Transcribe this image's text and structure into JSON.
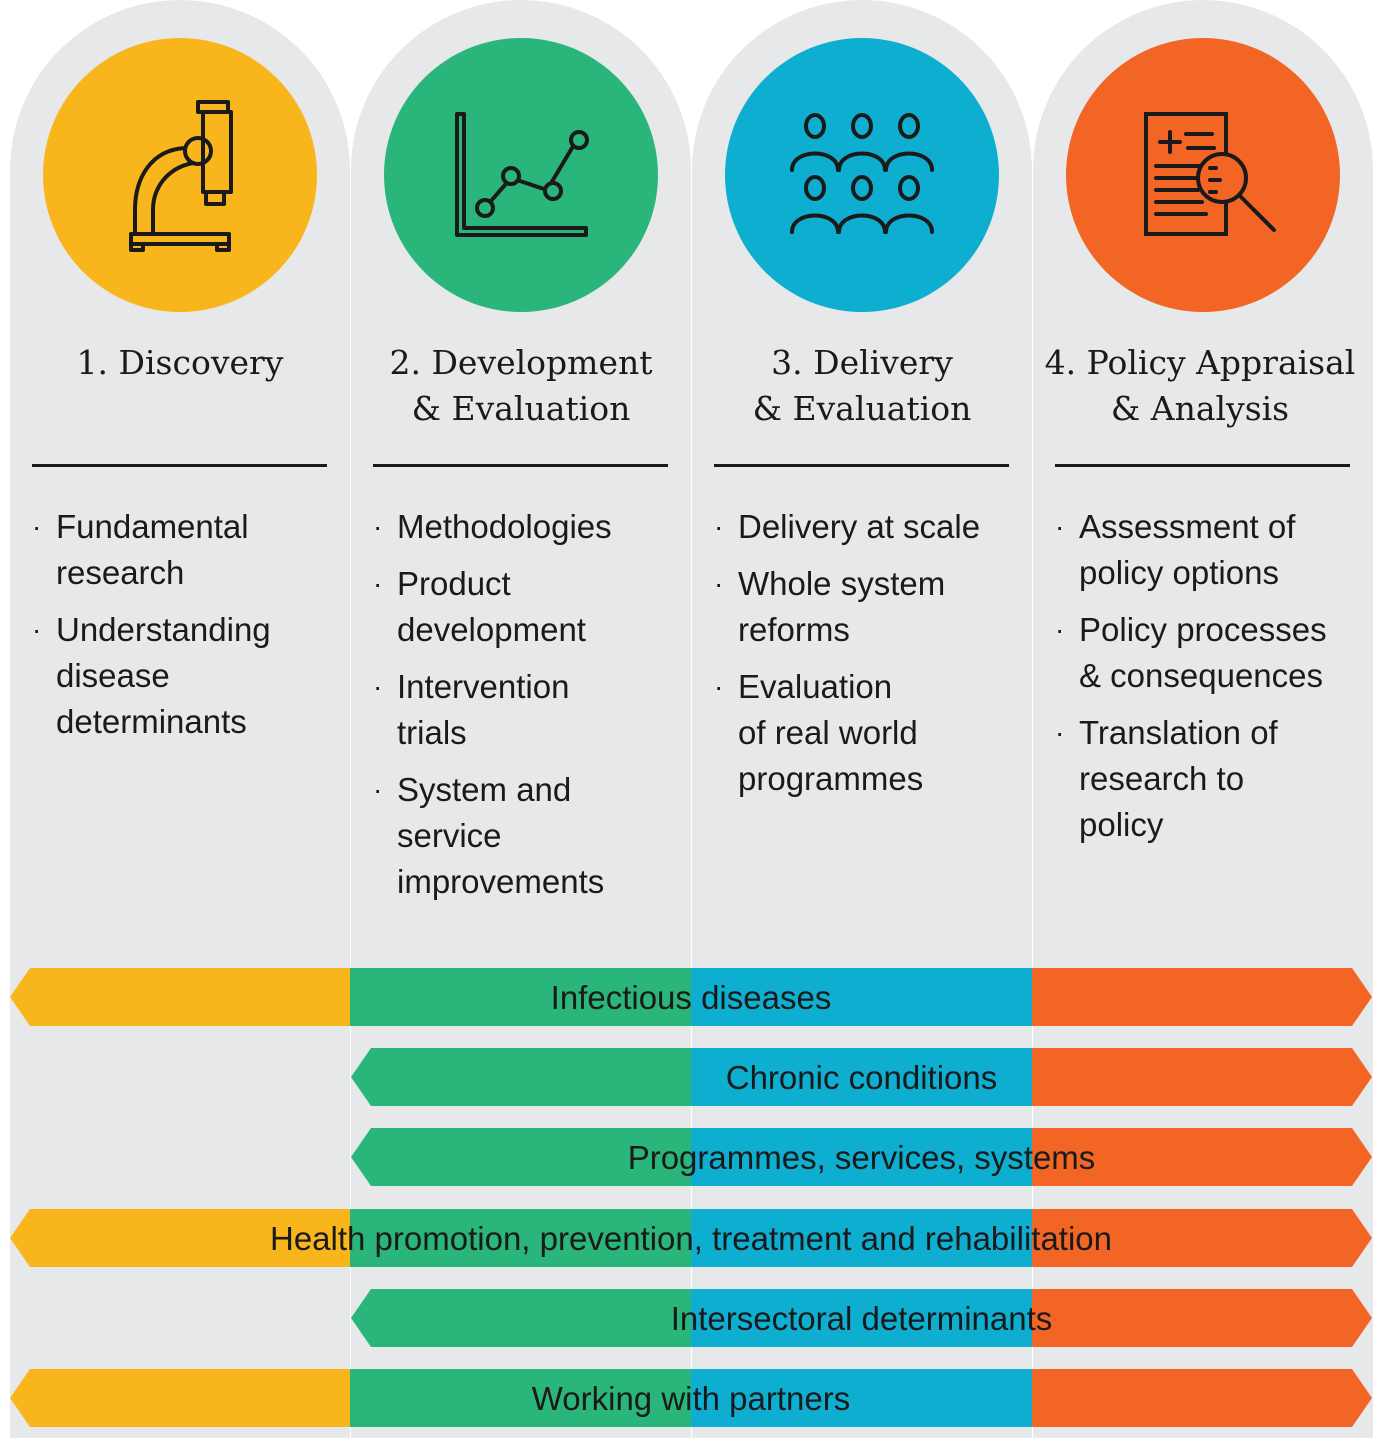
{
  "colors": {
    "background": "#e7e8ea",
    "discovery": "#f9b51c",
    "development": "#2ab57a",
    "delivery": "#0eaed0",
    "policy": "#f26525",
    "text": "#1a1a1a"
  },
  "stages": [
    {
      "number": "1.",
      "title_lines": [
        "Discovery"
      ],
      "icon": "microscope-icon",
      "items": [
        {
          "lines": [
            "Fundamental",
            "research"
          ]
        },
        {
          "lines": [
            "Understanding",
            "disease",
            "determinants"
          ]
        }
      ]
    },
    {
      "number": "2.",
      "title_lines": [
        "Development",
        "& Evaluation"
      ],
      "icon": "line-chart-icon",
      "items": [
        {
          "lines": [
            "Methodologies"
          ]
        },
        {
          "lines": [
            "Product",
            "development"
          ]
        },
        {
          "lines": [
            "Intervention",
            "trials"
          ]
        },
        {
          "lines": [
            "System and",
            "service",
            "improvements"
          ]
        }
      ]
    },
    {
      "number": "3.",
      "title_lines": [
        "Delivery",
        "& Evaluation"
      ],
      "icon": "people-group-icon",
      "items": [
        {
          "lines": [
            "Delivery at scale"
          ]
        },
        {
          "lines": [
            "Whole system",
            "reforms"
          ]
        },
        {
          "lines": [
            "Evaluation",
            "of real world",
            "programmes"
          ]
        }
      ]
    },
    {
      "number": "4.",
      "title_lines": [
        "Policy Appraisal",
        "& Analysis"
      ],
      "icon": "document-magnifier-icon",
      "items": [
        {
          "lines": [
            "Assessment of",
            "policy options"
          ]
        },
        {
          "lines": [
            "Policy processes",
            "& consequences"
          ]
        },
        {
          "lines": [
            "Translation of",
            "research to",
            "policy"
          ]
        }
      ]
    }
  ],
  "bands": [
    {
      "label": "Infectious diseases",
      "span_stages": [
        1,
        4
      ]
    },
    {
      "label": "Chronic conditions",
      "span_stages": [
        2,
        4
      ]
    },
    {
      "label": "Programmes, services, systems",
      "span_stages": [
        2,
        4
      ]
    },
    {
      "label": "Health promotion, prevention, treatment and rehabilitation",
      "span_stages": [
        1,
        4
      ]
    },
    {
      "label": "Intersectoral determinants",
      "span_stages": [
        2,
        4
      ]
    },
    {
      "label": "Working with partners",
      "span_stages": [
        1,
        4
      ]
    }
  ]
}
